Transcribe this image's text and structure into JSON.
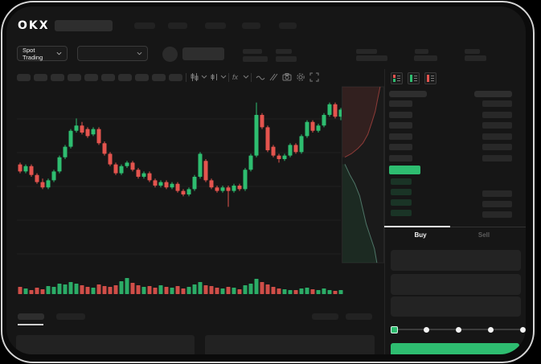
{
  "brand": {
    "logo": "OKX"
  },
  "market_selector": {
    "label": "Spot Trading"
  },
  "header": {
    "nav_placeholder_count": 5
  },
  "toolbar": {
    "icons": [
      "chart-type-icon",
      "candle-style-icon",
      "indicators-fx-icon",
      "line-tool-icon",
      "compare-icon",
      "camera-icon",
      "settings-gear-icon",
      "fullscreen-icon"
    ]
  },
  "orderbook": {
    "view_icons": [
      "book-combined-view",
      "book-bids-view",
      "book-asks-view"
    ],
    "ask_rows": 6,
    "bid_rows": 4
  },
  "trade_panel": {
    "buy_tab": "Buy",
    "sell_tab": "Sell",
    "active_tab": "Buy",
    "slider_stops": [
      0,
      25,
      50,
      75,
      100
    ]
  },
  "colors": {
    "up": "#2ebd70",
    "down": "#e4544e",
    "price_bar": "#2ebd70",
    "buy_button": "#2ebd70",
    "grid": "#202020"
  },
  "chart_data": {
    "type": "candlestick",
    "price_scale": [
      0,
      100
    ],
    "grid_horizontal_lines": 5,
    "candles": [
      [
        57,
        58,
        52,
        53
      ],
      [
        53,
        57,
        52,
        56
      ],
      [
        56,
        57,
        50,
        51
      ],
      [
        51,
        52,
        46,
        47
      ],
      [
        47,
        49,
        43,
        44
      ],
      [
        44,
        49,
        43,
        48
      ],
      [
        48,
        54,
        47,
        53
      ],
      [
        53,
        62,
        52,
        61
      ],
      [
        61,
        68,
        60,
        67
      ],
      [
        67,
        77,
        66,
        76
      ],
      [
        76,
        83,
        75,
        79
      ],
      [
        79,
        81,
        74,
        75
      ],
      [
        77,
        78,
        72,
        73
      ],
      [
        74,
        78,
        73,
        77
      ],
      [
        77,
        78,
        68,
        69
      ],
      [
        69,
        70,
        62,
        63
      ],
      [
        63,
        64,
        56,
        57
      ],
      [
        57,
        58,
        51,
        52
      ],
      [
        52,
        57,
        51,
        56
      ],
      [
        56,
        59,
        55,
        58
      ],
      [
        58,
        59,
        53,
        54
      ],
      [
        54,
        55,
        49,
        50
      ],
      [
        50,
        53,
        49,
        52
      ],
      [
        52,
        53,
        47,
        48
      ],
      [
        48,
        49,
        44,
        45
      ],
      [
        45,
        48,
        44,
        47
      ],
      [
        47,
        48,
        43,
        44
      ],
      [
        44,
        47,
        43,
        46
      ],
      [
        46,
        47,
        41,
        42
      ],
      [
        42,
        43,
        39,
        40
      ],
      [
        40,
        44,
        39,
        43
      ],
      [
        43,
        51,
        42,
        50
      ],
      [
        50,
        64,
        49,
        63
      ],
      [
        59,
        60,
        47,
        48
      ],
      [
        48,
        49,
        43,
        44
      ],
      [
        44,
        45,
        41,
        42
      ],
      [
        42,
        45,
        41,
        44
      ],
      [
        44,
        45,
        33,
        42
      ],
      [
        42,
        46,
        41,
        45
      ],
      [
        45,
        46,
        42,
        43
      ],
      [
        43,
        55,
        42,
        54
      ],
      [
        54,
        63,
        53,
        62
      ],
      [
        62,
        92,
        61,
        85
      ],
      [
        85,
        86,
        77,
        78
      ],
      [
        78,
        79,
        64,
        65
      ],
      [
        67,
        68,
        61,
        62
      ],
      [
        62,
        63,
        58,
        60
      ],
      [
        60,
        63,
        59,
        62
      ],
      [
        62,
        69,
        61,
        68
      ],
      [
        68,
        69,
        63,
        64
      ],
      [
        64,
        74,
        63,
        73
      ],
      [
        73,
        82,
        72,
        81
      ],
      [
        81,
        82,
        75,
        76
      ],
      [
        76,
        80,
        75,
        79
      ],
      [
        79,
        86,
        78,
        85
      ],
      [
        85,
        92,
        84,
        91
      ],
      [
        91,
        92,
        83,
        84
      ],
      [
        84,
        89,
        82,
        88
      ]
    ],
    "volumes": [
      9,
      7,
      5,
      8,
      6,
      10,
      9,
      13,
      12,
      15,
      13,
      11,
      9,
      8,
      12,
      10,
      9,
      11,
      16,
      20,
      14,
      11,
      9,
      10,
      8,
      11,
      9,
      8,
      10,
      7,
      9,
      12,
      15,
      11,
      10,
      8,
      7,
      9,
      8,
      6,
      11,
      13,
      19,
      15,
      12,
      9,
      7,
      6,
      5,
      5,
      7,
      8,
      6,
      5,
      7,
      5,
      4,
      5
    ],
    "depth": {
      "asks": [
        [
          0.92,
          0.0
        ],
        [
          0.85,
          0.08
        ],
        [
          0.8,
          0.14
        ],
        [
          0.72,
          0.2
        ],
        [
          0.62,
          0.27
        ],
        [
          0.5,
          0.32
        ],
        [
          0.38,
          0.35
        ],
        [
          0.22,
          0.38
        ],
        [
          0.06,
          0.4
        ]
      ],
      "bids": [
        [
          0.06,
          0.44
        ],
        [
          0.18,
          0.5
        ],
        [
          0.3,
          0.55
        ],
        [
          0.42,
          0.62
        ],
        [
          0.5,
          0.7
        ],
        [
          0.58,
          0.78
        ],
        [
          0.68,
          0.85
        ],
        [
          0.78,
          0.92
        ],
        [
          0.84,
          1.0
        ]
      ]
    }
  }
}
